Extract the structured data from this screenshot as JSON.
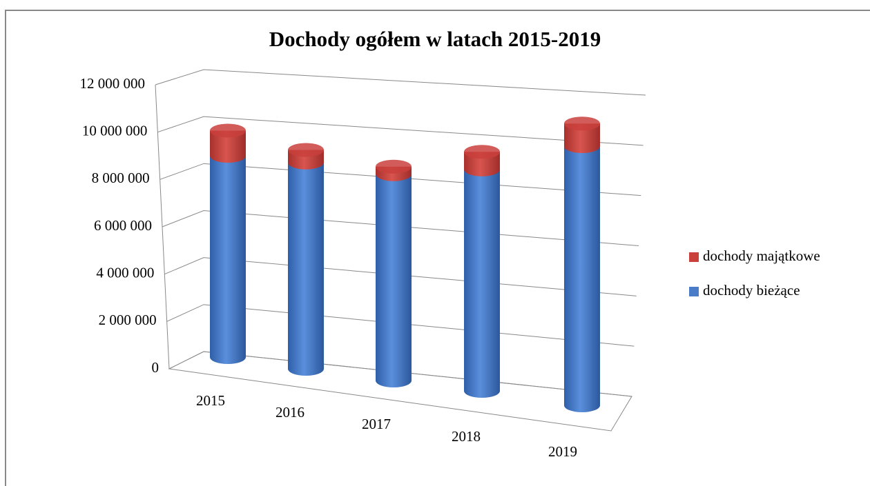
{
  "chart_data": {
    "type": "bar",
    "stacked": true,
    "title": "Dochody ogółem w latach 2015-2019",
    "categories": [
      "2015",
      "2016",
      "2017",
      "2018",
      "2019"
    ],
    "series": [
      {
        "name": "dochody bieżące",
        "color": "#4a7cc8",
        "values": [
          8000000,
          8200000,
          8200000,
          8800000,
          10300000
        ]
      },
      {
        "name": "dochody majątkowe",
        "color": "#c9403c",
        "values": [
          1000000,
          500000,
          300000,
          700000,
          900000
        ]
      }
    ],
    "ylim": [
      0,
      12000000
    ],
    "yticks": [
      0,
      {
        "value": 2000000,
        "label": "2 000 000"
      },
      {
        "value": 4000000,
        "label": "4 000 000"
      },
      {
        "value": 6000000,
        "label": "6 000 000"
      },
      {
        "value": 8000000,
        "label": "8 000 000"
      },
      {
        "value": 10000000,
        "label": "10 000 000"
      },
      {
        "value": 12000000,
        "label": "12 000 000"
      }
    ],
    "grid": true,
    "legend": "right"
  }
}
